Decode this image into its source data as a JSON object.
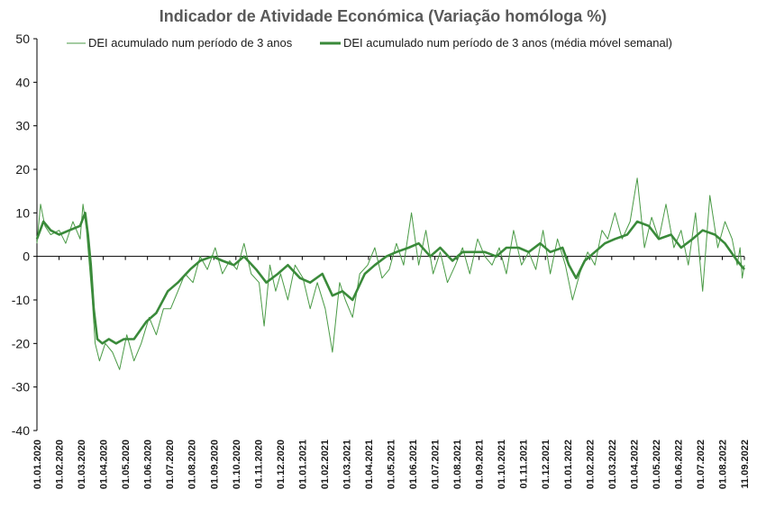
{
  "chart_data": {
    "type": "line",
    "title": "Indicador de Atividade Económica (Variação homóloga %)",
    "xlabel": "",
    "ylabel": "",
    "ylim": [
      -40,
      50
    ],
    "yticks": [
      50,
      40,
      30,
      20,
      10,
      0,
      -10,
      -20,
      -30,
      -40
    ],
    "grid": false,
    "legend_position": "top",
    "x_range": [
      "2020-01-01",
      "2022-09-11"
    ],
    "x_tick_labels": [
      "01.01.2020",
      "01.02.2020",
      "01.03.2020",
      "01.04.2020",
      "01.05.2020",
      "01.06.2020",
      "01.07.2020",
      "01.08.2020",
      "01.09.2020",
      "01.10.2020",
      "01.11.2020",
      "01.12.2020",
      "01.01.2021",
      "01.02.2021",
      "01.03.2021",
      "01.04.2021",
      "01.05.2021",
      "01.06.2021",
      "01.07.2021",
      "01.08.2021",
      "01.09.2021",
      "01.10.2021",
      "01.11.2021",
      "01.12.2021",
      "01.01.2022",
      "01.02.2022",
      "01.03.2022",
      "01.04.2022",
      "01.05.2022",
      "01.06.2022",
      "01.07.2022",
      "01.08.2022",
      "11.09.2022"
    ],
    "colors": {
      "daily": "#4a9a46",
      "weekly": "#3a8a3a",
      "axis": "#000000"
    },
    "series": [
      {
        "name": "DEI acumulado num período de 3 anos",
        "style": "thin",
        "x": [
          "2020-01-01",
          "2020-01-06",
          "2020-01-12",
          "2020-01-20",
          "2020-02-01",
          "2020-02-10",
          "2020-02-20",
          "2020-03-01",
          "2020-03-05",
          "2020-03-10",
          "2020-03-14",
          "2020-03-18",
          "2020-03-22",
          "2020-03-28",
          "2020-04-05",
          "2020-04-15",
          "2020-04-25",
          "2020-05-05",
          "2020-05-15",
          "2020-05-25",
          "2020-06-05",
          "2020-06-15",
          "2020-06-25",
          "2020-07-05",
          "2020-07-15",
          "2020-07-25",
          "2020-08-05",
          "2020-08-15",
          "2020-08-25",
          "2020-09-05",
          "2020-09-15",
          "2020-09-25",
          "2020-10-05",
          "2020-10-15",
          "2020-10-25",
          "2020-11-05",
          "2020-11-12",
          "2020-11-20",
          "2020-11-28",
          "2020-12-05",
          "2020-12-15",
          "2020-12-25",
          "2021-01-05",
          "2021-01-15",
          "2021-01-25",
          "2021-02-05",
          "2021-02-15",
          "2021-02-25",
          "2021-03-05",
          "2021-03-15",
          "2021-03-25",
          "2021-04-05",
          "2021-04-15",
          "2021-04-25",
          "2021-05-05",
          "2021-05-15",
          "2021-05-25",
          "2021-06-05",
          "2021-06-15",
          "2021-06-25",
          "2021-07-05",
          "2021-07-15",
          "2021-07-25",
          "2021-08-05",
          "2021-08-15",
          "2021-08-25",
          "2021-09-05",
          "2021-09-15",
          "2021-09-25",
          "2021-10-05",
          "2021-10-15",
          "2021-10-25",
          "2021-11-05",
          "2021-11-15",
          "2021-11-25",
          "2021-12-05",
          "2021-12-15",
          "2021-12-25",
          "2022-01-05",
          "2022-01-15",
          "2022-01-25",
          "2022-02-05",
          "2022-02-15",
          "2022-02-25",
          "2022-03-05",
          "2022-03-15",
          "2022-03-25",
          "2022-04-05",
          "2022-04-15",
          "2022-04-25",
          "2022-05-05",
          "2022-05-15",
          "2022-05-25",
          "2022-06-05",
          "2022-06-15",
          "2022-06-25",
          "2022-07-05",
          "2022-07-15",
          "2022-07-25",
          "2022-08-05",
          "2022-08-15",
          "2022-08-25",
          "2022-09-01",
          "2022-09-05",
          "2022-09-08",
          "2022-09-11"
        ],
        "values": [
          3,
          12,
          7,
          5,
          6,
          3,
          8,
          4,
          12,
          6,
          -2,
          -10,
          -20,
          -24,
          -20,
          -22,
          -26,
          -18,
          -24,
          -20,
          -14,
          -18,
          -12,
          -12,
          -8,
          -4,
          -6,
          0,
          -3,
          2,
          -4,
          -1,
          -3,
          3,
          -4,
          -6,
          -16,
          -2,
          -8,
          -4,
          -10,
          -2,
          -5,
          -12,
          -6,
          -12,
          -22,
          -6,
          -10,
          -14,
          -4,
          -2,
          2,
          -5,
          -3,
          3,
          -2,
          10,
          -2,
          6,
          -4,
          1,
          -6,
          -2,
          2,
          -4,
          4,
          0,
          -2,
          2,
          -4,
          6,
          -2,
          1,
          -3,
          6,
          -4,
          4,
          -2,
          -10,
          -4,
          1,
          -2,
          6,
          4,
          10,
          4,
          8,
          18,
          2,
          9,
          4,
          12,
          2,
          6,
          -2,
          10,
          -8,
          14,
          2,
          8,
          4,
          -2,
          2,
          -5,
          -2
        ]
      },
      {
        "name": "DEI acumulado num período de 3 anos (média móvel semanal)",
        "style": "thick",
        "x": [
          "2020-01-01",
          "2020-01-10",
          "2020-01-20",
          "2020-02-01",
          "2020-02-15",
          "2020-03-01",
          "2020-03-08",
          "2020-03-12",
          "2020-03-16",
          "2020-03-20",
          "2020-03-25",
          "2020-04-01",
          "2020-04-10",
          "2020-04-20",
          "2020-05-01",
          "2020-05-15",
          "2020-06-01",
          "2020-06-15",
          "2020-07-01",
          "2020-07-15",
          "2020-08-01",
          "2020-08-15",
          "2020-09-01",
          "2020-09-15",
          "2020-10-01",
          "2020-10-15",
          "2020-11-01",
          "2020-11-15",
          "2020-12-01",
          "2020-12-15",
          "2021-01-01",
          "2021-01-15",
          "2021-02-01",
          "2021-02-15",
          "2021-03-01",
          "2021-03-15",
          "2021-04-01",
          "2021-04-15",
          "2021-05-01",
          "2021-05-15",
          "2021-06-01",
          "2021-06-15",
          "2021-07-01",
          "2021-07-15",
          "2021-08-01",
          "2021-08-15",
          "2021-09-01",
          "2021-09-15",
          "2021-10-01",
          "2021-10-15",
          "2021-11-01",
          "2021-11-15",
          "2021-12-01",
          "2021-12-15",
          "2022-01-01",
          "2022-01-10",
          "2022-01-20",
          "2022-02-01",
          "2022-02-15",
          "2022-03-01",
          "2022-03-15",
          "2022-04-01",
          "2022-04-15",
          "2022-05-01",
          "2022-05-15",
          "2022-06-01",
          "2022-06-15",
          "2022-07-01",
          "2022-07-15",
          "2022-08-01",
          "2022-08-15",
          "2022-09-01",
          "2022-09-11"
        ],
        "values": [
          4,
          8,
          6,
          5,
          6,
          7,
          10,
          5,
          -2,
          -12,
          -19,
          -20,
          -19,
          -20,
          -19,
          -19,
          -15,
          -13,
          -8,
          -6,
          -3,
          -1,
          0,
          -1,
          -2,
          0,
          -3,
          -6,
          -4,
          -2,
          -5,
          -6,
          -4,
          -9,
          -8,
          -10,
          -4,
          -2,
          0,
          1,
          2,
          3,
          0,
          2,
          -1,
          1,
          1,
          1,
          0,
          2,
          2,
          1,
          3,
          1,
          2,
          -2,
          -5,
          -1,
          1,
          3,
          4,
          5,
          8,
          7,
          4,
          5,
          2,
          4,
          6,
          5,
          3,
          -1,
          -3
        ]
      }
    ]
  }
}
